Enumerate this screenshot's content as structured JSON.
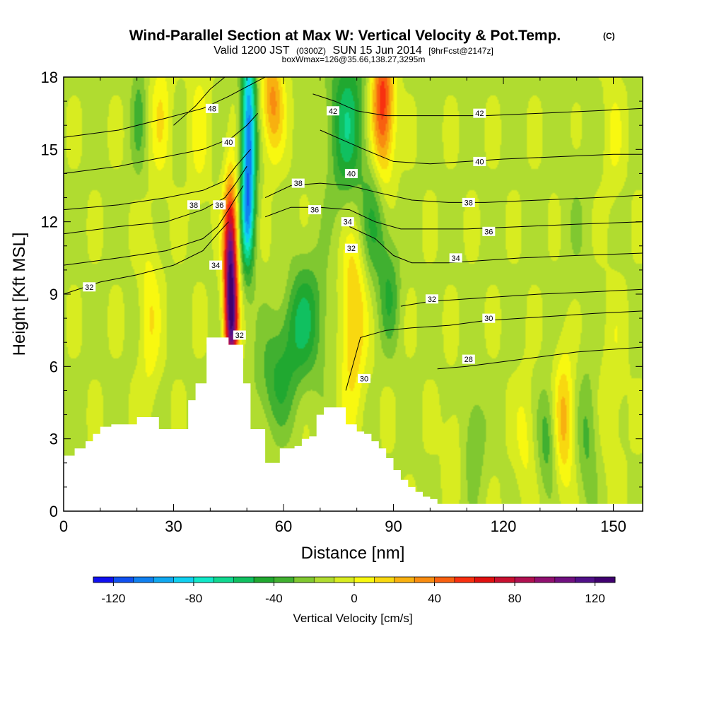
{
  "chart_data": {
    "type": "heatmap",
    "title": "Wind-Parallel Section at Max W: Vertical Velocity & Pot.Temp.",
    "title_tag": "(C)",
    "subtitle_prefix": "Valid 1200 JST",
    "subtitle_utc": "(0300Z)",
    "subtitle_date": "SUN 15 Jun 2014",
    "subtitle_fcst": "[9hrFcst@2147z]",
    "subtitle2": "boxWmax=126@35.66,138.27,3295m",
    "xlabel": "Distance [nm]",
    "ylabel": "Height [Kft MSL]",
    "xlim": [
      0,
      158
    ],
    "ylim": [
      0,
      18
    ],
    "x_ticks": [
      0,
      30,
      60,
      90,
      120,
      150
    ],
    "y_ticks": [
      0,
      3,
      6,
      9,
      12,
      15,
      18
    ],
    "grid": false,
    "colorbar": {
      "label": "Vertical Velocity [cm/s]",
      "min": -130,
      "max": 130,
      "step": 10,
      "tick_values": [
        -120,
        -80,
        -40,
        0,
        40,
        80,
        120
      ],
      "tick_labels": [
        "-120",
        "-80",
        "-40",
        "0",
        "40",
        "80",
        "120"
      ],
      "colors": [
        "#1010f0",
        "#1050f0",
        "#1080f0",
        "#10a8f0",
        "#10d0f0",
        "#10e8c8",
        "#10d890",
        "#10c060",
        "#20a830",
        "#40b030",
        "#80c830",
        "#b0dc30",
        "#d8ec20",
        "#f8f810",
        "#f8d810",
        "#f8b010",
        "#f88c10",
        "#f86010",
        "#f83010",
        "#e01010",
        "#c81030",
        "#b01050",
        "#901070",
        "#701080",
        "#501088",
        "#400070"
      ]
    },
    "w_field": {
      "background": -12,
      "features": [
        {
          "x": 45.5,
          "y": 10.0,
          "sx": 1.3,
          "sy": 2.4,
          "value": 126
        },
        {
          "x": 46.0,
          "y": 7.5,
          "sx": 1.2,
          "sy": 1.4,
          "value": 60
        },
        {
          "x": 50.5,
          "y": 15.5,
          "sx": 1.4,
          "sy": 3.0,
          "value": -95
        },
        {
          "x": 50.0,
          "y": 12.0,
          "sx": 1.2,
          "sy": 1.5,
          "value": -40
        },
        {
          "x": 57.0,
          "y": 17.0,
          "sx": 2.2,
          "sy": 1.6,
          "value": 45
        },
        {
          "x": 77.5,
          "y": 16.0,
          "sx": 3.5,
          "sy": 2.6,
          "value": -45
        },
        {
          "x": 85.0,
          "y": 12.0,
          "sx": 2.5,
          "sy": 1.8,
          "value": -30
        },
        {
          "x": 87.0,
          "y": 16.8,
          "sx": 2.2,
          "sy": 2.2,
          "value": 70
        },
        {
          "x": 79.0,
          "y": 8.2,
          "sx": 2.5,
          "sy": 3.0,
          "value": 35
        },
        {
          "x": 89.0,
          "y": 9.0,
          "sx": 2.0,
          "sy": 1.6,
          "value": -25
        },
        {
          "x": 65.0,
          "y": 8.0,
          "sx": 4.5,
          "sy": 1.8,
          "value": -40
        },
        {
          "x": 58.0,
          "y": 5.3,
          "sx": 4.0,
          "sy": 1.5,
          "value": -25
        },
        {
          "x": 60.5,
          "y": 9.5,
          "sx": 3.0,
          "sy": 1.2,
          "value": 10
        },
        {
          "x": 23.5,
          "y": 8.0,
          "sx": 2.0,
          "sy": 2.5,
          "value": 20
        },
        {
          "x": 26.5,
          "y": 16.5,
          "sx": 2.0,
          "sy": 2.0,
          "value": 20
        },
        {
          "x": 20.5,
          "y": 16.5,
          "sx": 1.5,
          "sy": 1.8,
          "value": -20
        },
        {
          "x": 37.0,
          "y": 16.0,
          "sx": 2.0,
          "sy": 2.5,
          "value": 15
        },
        {
          "x": 106.0,
          "y": 3.0,
          "sx": 2.0,
          "sy": 1.5,
          "value": 10
        },
        {
          "x": 112.0,
          "y": 3.0,
          "sx": 2.0,
          "sy": 1.5,
          "value": -20
        },
        {
          "x": 126.0,
          "y": 3.0,
          "sx": 2.0,
          "sy": 1.8,
          "value": 15
        },
        {
          "x": 132.0,
          "y": 3.0,
          "sx": 1.8,
          "sy": 1.5,
          "value": -25
        },
        {
          "x": 136.5,
          "y": 3.8,
          "sx": 2.0,
          "sy": 2.0,
          "value": 35
        },
        {
          "x": 143.0,
          "y": 3.0,
          "sx": 2.0,
          "sy": 2.0,
          "value": -20
        },
        {
          "x": 150.0,
          "y": 5.0,
          "sx": 2.5,
          "sy": 3.0,
          "value": 10
        },
        {
          "x": 140.0,
          "y": 12.0,
          "sx": 3.0,
          "sy": 3.0,
          "value": -5
        },
        {
          "x": 150.0,
          "y": 15.5,
          "sx": 2.0,
          "sy": 2.0,
          "value": 12
        }
      ]
    },
    "terrain": {
      "x": [
        0,
        3,
        6,
        8,
        10,
        13,
        17,
        20,
        24,
        26,
        29,
        32,
        34,
        36,
        37,
        39,
        43,
        45,
        47,
        49,
        51,
        52,
        53,
        55,
        57,
        59,
        61,
        63,
        65,
        67,
        69,
        71,
        73,
        75,
        76,
        77,
        79,
        80,
        82,
        84,
        86,
        88,
        90,
        92,
        94,
        96,
        98,
        100,
        102,
        158
      ],
      "height_kft": [
        2.3,
        2.6,
        2.9,
        3.2,
        3.5,
        3.6,
        3.6,
        3.9,
        3.9,
        3.4,
        3.4,
        3.4,
        4.6,
        5.3,
        5.3,
        7.2,
        7.2,
        6.9,
        6.9,
        5.3,
        3.4,
        3.4,
        3.4,
        2.0,
        2.0,
        2.6,
        2.6,
        2.7,
        3.0,
        3.1,
        4.0,
        4.3,
        4.3,
        4.3,
        4.3,
        3.6,
        3.6,
        3.3,
        3.2,
        2.9,
        2.6,
        2.2,
        1.7,
        1.3,
        1.0,
        0.8,
        0.6,
        0.5,
        0.3,
        0.3
      ]
    },
    "theta_contours": [
      {
        "label": "28",
        "x": [
          102,
          110,
          120,
          130,
          140,
          158
        ],
        "y": [
          5.9,
          6.0,
          6.2,
          6.4,
          6.6,
          6.8
        ]
      },
      {
        "label": "30",
        "x": [
          77,
          81,
          88,
          95,
          105,
          115,
          125,
          135,
          145,
          158
        ],
        "y": [
          5.0,
          7.2,
          7.5,
          7.6,
          7.7,
          7.9,
          8.0,
          8.1,
          8.2,
          8.3
        ]
      },
      {
        "label": "32",
        "x": [
          0,
          10,
          20,
          30,
          38,
          42,
          45
        ],
        "y": [
          9.0,
          9.5,
          9.8,
          10.2,
          10.8,
          11.5,
          12.0
        ]
      },
      {
        "label": "32",
        "x": [
          92,
          100,
          110,
          120,
          130,
          145,
          158
        ],
        "y": [
          8.5,
          8.7,
          8.8,
          8.9,
          9.0,
          9.1,
          9.2
        ]
      },
      {
        "label": "34",
        "x": [
          0,
          15,
          28,
          38,
          42,
          45,
          47,
          49
        ],
        "y": [
          10.2,
          10.5,
          10.8,
          11.3,
          11.8,
          12.5,
          13.0,
          13.5
        ]
      },
      {
        "label": "34",
        "x": [
          78,
          85,
          90,
          95,
          105,
          115,
          125,
          140,
          158
        ],
        "y": [
          11.8,
          11.3,
          10.6,
          10.3,
          10.3,
          10.4,
          10.5,
          10.6,
          10.7
        ]
      },
      {
        "label": "36",
        "x": [
          0,
          15,
          28,
          38,
          44,
          47,
          50
        ],
        "y": [
          11.5,
          11.8,
          12.0,
          12.5,
          13.0,
          13.6,
          14.3
        ]
      },
      {
        "label": "36",
        "x": [
          55,
          62,
          70,
          78,
          85,
          92,
          100,
          110,
          125,
          140,
          158
        ],
        "y": [
          12.2,
          12.6,
          12.6,
          12.5,
          12.0,
          11.7,
          11.7,
          11.7,
          11.8,
          11.9,
          12.0
        ]
      },
      {
        "label": "38",
        "x": [
          0,
          15,
          28,
          38,
          44,
          47,
          51
        ],
        "y": [
          12.5,
          12.7,
          13.0,
          13.3,
          13.7,
          14.3,
          15.0
        ]
      },
      {
        "label": "38",
        "x": [
          55,
          62,
          70,
          78,
          86,
          95,
          105,
          115,
          130,
          145,
          158
        ],
        "y": [
          13.0,
          13.5,
          13.6,
          13.5,
          13.2,
          12.9,
          12.8,
          12.8,
          12.9,
          13.0,
          13.1
        ]
      },
      {
        "label": "40",
        "x": [
          0,
          15,
          28,
          38,
          43,
          46,
          50,
          53
        ],
        "y": [
          14.0,
          14.3,
          14.7,
          15.0,
          15.3,
          15.5,
          16.0,
          16.5
        ]
      },
      {
        "label": "40",
        "x": [
          70,
          76,
          82,
          90,
          100,
          110,
          120,
          135,
          150,
          158
        ],
        "y": [
          15.8,
          15.4,
          15.0,
          14.5,
          14.4,
          14.5,
          14.6,
          14.7,
          14.8,
          14.8
        ]
      },
      {
        "label": "42",
        "x": [
          0,
          15,
          28,
          38,
          45,
          50,
          55
        ],
        "y": [
          15.5,
          15.8,
          16.3,
          16.7,
          17.2,
          17.6,
          18.0
        ]
      },
      {
        "label": "42",
        "x": [
          68,
          74,
          80,
          88,
          100,
          115,
          130,
          145,
          158
        ],
        "y": [
          17.3,
          17.0,
          16.6,
          16.4,
          16.4,
          16.4,
          16.5,
          16.6,
          16.7
        ]
      },
      {
        "label": "48",
        "x": [
          30,
          36,
          40,
          44
        ],
        "y": [
          16.0,
          16.8,
          17.5,
          18.0
        ]
      }
    ],
    "contour_labels": [
      {
        "text": "48",
        "x": 40.5,
        "y": 16.7
      },
      {
        "text": "42",
        "x": 73.5,
        "y": 16.6
      },
      {
        "text": "42",
        "x": 113.5,
        "y": 16.5
      },
      {
        "text": "40",
        "x": 45.0,
        "y": 15.3
      },
      {
        "text": "40",
        "x": 78.5,
        "y": 14.0
      },
      {
        "text": "40",
        "x": 113.5,
        "y": 14.5
      },
      {
        "text": "38",
        "x": 35.5,
        "y": 12.7
      },
      {
        "text": "36",
        "x": 42.5,
        "y": 12.7
      },
      {
        "text": "38",
        "x": 64.0,
        "y": 13.6
      },
      {
        "text": "38",
        "x": 110.5,
        "y": 12.8
      },
      {
        "text": "36",
        "x": 68.5,
        "y": 12.5
      },
      {
        "text": "34",
        "x": 77.5,
        "y": 12.0
      },
      {
        "text": "36",
        "x": 116.0,
        "y": 11.6
      },
      {
        "text": "34",
        "x": 41.5,
        "y": 10.2
      },
      {
        "text": "32",
        "x": 78.5,
        "y": 10.9
      },
      {
        "text": "34",
        "x": 107.0,
        "y": 10.5
      },
      {
        "text": "32",
        "x": 7.0,
        "y": 9.3
      },
      {
        "text": "32",
        "x": 100.5,
        "y": 8.8
      },
      {
        "text": "30",
        "x": 116.0,
        "y": 8.0
      },
      {
        "text": "32",
        "x": 48.0,
        "y": 7.3
      },
      {
        "text": "28",
        "x": 110.5,
        "y": 6.3
      },
      {
        "text": "30",
        "x": 82.0,
        "y": 5.5
      }
    ]
  }
}
